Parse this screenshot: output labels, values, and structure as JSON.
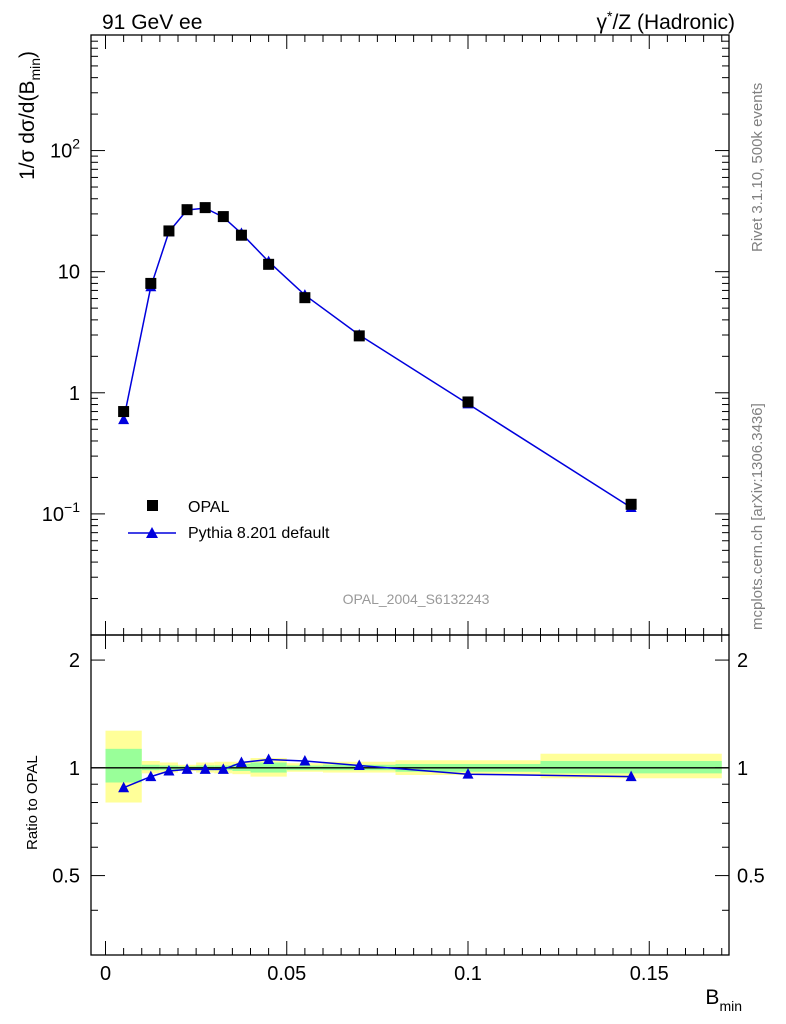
{
  "header": {
    "left_label": "91 GeV ee",
    "right_label_base": "γ",
    "right_label_sup": "*",
    "right_label_rest": "/Z (Hadronic)"
  },
  "side_text": {
    "version": "Rivet 3.1.10,  500k events",
    "source": "mcplots.cern.ch [arXiv:1306.3436]"
  },
  "analysis_id": "OPAL_2004_S6132243",
  "axes": {
    "top_ylabel_main": "1/σ dσ/d(B",
    "top_ylabel_sub": "min",
    "top_ylabel_close": ")",
    "bottom_ylabel": "Ratio to OPAL",
    "xlabel_main": "B",
    "xlabel_sub": "min",
    "x_ticks": [
      "0",
      "0.05",
      "0.1",
      "0.15"
    ],
    "top_yticks": [
      {
        "value": 0.1,
        "base": "10",
        "exp": "−1"
      },
      {
        "value": 1,
        "base": "1",
        "exp": ""
      },
      {
        "value": 10,
        "base": "10",
        "exp": ""
      },
      {
        "value": 100,
        "base": "10",
        "exp": "2"
      }
    ],
    "bottom_yticks": [
      {
        "value": 0.5,
        "label": "0.5"
      },
      {
        "value": 1,
        "label": "1"
      },
      {
        "value": 2,
        "label": "2"
      }
    ]
  },
  "legend": {
    "data_label": "OPAL",
    "mc_label": "Pythia 8.201 default"
  },
  "chart_data": {
    "type": "scatter",
    "xlim": [
      -0.004,
      0.172
    ],
    "top_ylim": [
      0.01,
      900
    ],
    "top_yscale": "log",
    "bottom_ylim": [
      0.3,
      2.35
    ],
    "bottom_yscale": "log",
    "legend_position": "bottom-left",
    "bins": [
      [
        0,
        0.01
      ],
      [
        0.01,
        0.015
      ],
      [
        0.015,
        0.02
      ],
      [
        0.02,
        0.025
      ],
      [
        0.025,
        0.03
      ],
      [
        0.03,
        0.035
      ],
      [
        0.035,
        0.04
      ],
      [
        0.04,
        0.05
      ],
      [
        0.05,
        0.06
      ],
      [
        0.06,
        0.08
      ],
      [
        0.08,
        0.12
      ],
      [
        0.12,
        0.17
      ]
    ],
    "x": [
      0.005,
      0.0125,
      0.0175,
      0.0225,
      0.0275,
      0.0325,
      0.0375,
      0.045,
      0.055,
      0.07,
      0.1,
      0.145
    ],
    "series": [
      {
        "name": "OPAL",
        "values": [
          0.7,
          8.0,
          21.7,
          32.5,
          33.8,
          28.5,
          20.0,
          11.5,
          6.1,
          2.95,
          0.84,
          0.12
        ]
      },
      {
        "name": "Pythia 8.201 default",
        "values": [
          0.6,
          7.5,
          21.3,
          32.3,
          33.5,
          28.2,
          20.7,
          12.1,
          6.4,
          3.0,
          0.81,
          0.113
        ]
      }
    ],
    "ratio": {
      "reference_line": 1,
      "values": [
        0.88,
        0.945,
        0.98,
        0.99,
        0.99,
        0.99,
        1.035,
        1.055,
        1.045,
        1.015,
        0.96,
        0.945
      ],
      "band_inner": [
        [
          0.91,
          1.13
        ],
        [
          0.985,
          1.02
        ],
        [
          0.985,
          1.015
        ],
        [
          0.99,
          1.01
        ],
        [
          0.985,
          1.015
        ],
        [
          0.985,
          1.015
        ],
        [
          0.98,
          1.025
        ],
        [
          0.97,
          1.035
        ],
        [
          0.985,
          1.015
        ],
        [
          0.985,
          1.02
        ],
        [
          0.975,
          1.025
        ],
        [
          0.965,
          1.045
        ]
      ],
      "band_outer": [
        [
          0.8,
          1.27
        ],
        [
          0.965,
          1.045
        ],
        [
          0.97,
          1.035
        ],
        [
          0.98,
          1.02
        ],
        [
          0.97,
          1.035
        ],
        [
          0.965,
          1.04
        ],
        [
          0.96,
          1.04
        ],
        [
          0.945,
          1.065
        ],
        [
          0.975,
          1.03
        ],
        [
          0.97,
          1.04
        ],
        [
          0.955,
          1.05
        ],
        [
          0.935,
          1.095
        ]
      ]
    },
    "colors": {
      "data": "#000000",
      "mc": "#0000dd",
      "band_inner": "#99ff99",
      "band_outer": "#ffff99",
      "side_text": "#808080"
    }
  }
}
